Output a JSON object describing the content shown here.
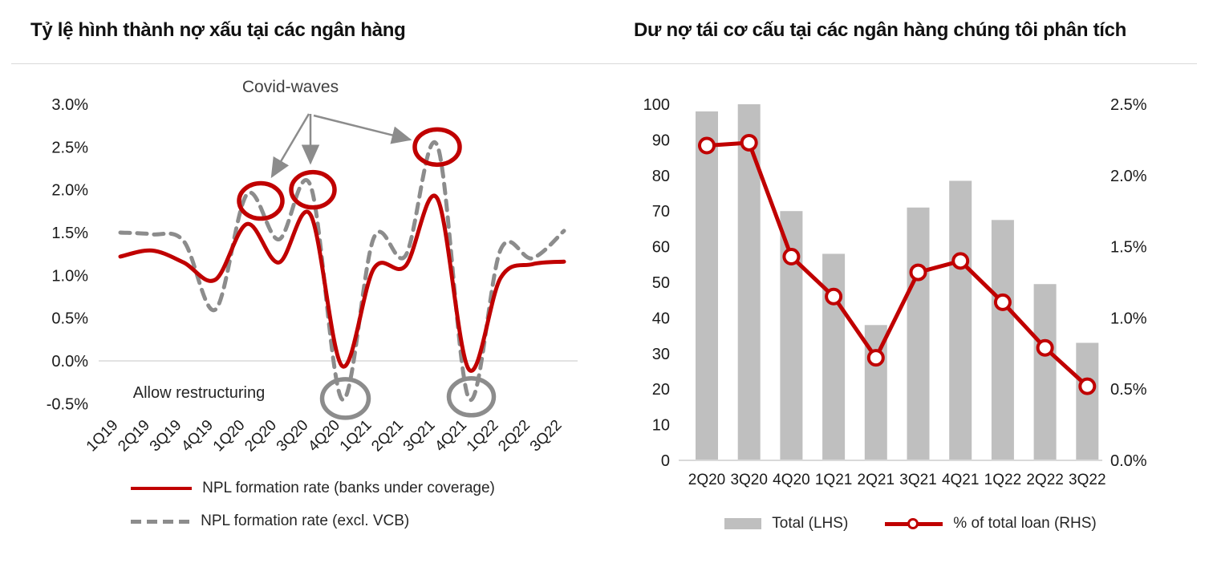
{
  "chart_data": [
    {
      "type": "line",
      "title": "Tỷ lệ hình thành nợ xấu tại các ngân hàng",
      "categories": [
        "1Q19",
        "2Q19",
        "3Q19",
        "4Q19",
        "1Q20",
        "2Q20",
        "3Q20",
        "4Q20",
        "1Q21",
        "2Q21",
        "3Q21",
        "4Q21",
        "1Q22",
        "2Q22",
        "3Q22"
      ],
      "series": [
        {
          "name": "NPL formation rate (banks under coverage)",
          "line_style": "solid",
          "color": "#C00000",
          "values": [
            1.22,
            1.29,
            1.15,
            0.95,
            1.6,
            1.15,
            1.71,
            -0.06,
            1.08,
            1.11,
            1.9,
            -0.1,
            0.97,
            1.13,
            1.16
          ]
        },
        {
          "name": "NPL formation rate (excl. VCB)",
          "line_style": "dashed",
          "color": "#8C8C8C",
          "values": [
            1.5,
            1.48,
            1.4,
            0.6,
            1.95,
            1.42,
            2.05,
            -0.45,
            1.44,
            1.23,
            2.52,
            -0.44,
            1.3,
            1.2,
            1.52
          ]
        }
      ],
      "y_ticks": [
        "3.0%",
        "2.5%",
        "2.0%",
        "1.5%",
        "1.0%",
        "0.5%",
        "0.0%",
        "-0.5%"
      ],
      "ylim": [
        -0.75,
        3.3
      ],
      "grid": "zero-line-only",
      "legend_position": "bottom",
      "annotations": {
        "covid_label": "Covid-waves",
        "restructuring_label": "Allow restructuring",
        "red_circled_peaks": [
          "1Q20",
          "3Q20",
          "3Q21"
        ],
        "gray_circled_dips": [
          "4Q20",
          "4Q21"
        ]
      }
    },
    {
      "type": "bar+line",
      "title": "Dư nợ tái cơ cấu tại các ngân hàng chúng tôi phân tích",
      "categories": [
        "2Q20",
        "3Q20",
        "4Q20",
        "1Q21",
        "2Q21",
        "3Q21",
        "4Q21",
        "1Q22",
        "2Q22",
        "3Q22"
      ],
      "series": [
        {
          "name": "Total (LHS)",
          "type": "bar",
          "axis": "left",
          "color": "#BFBFBF",
          "values": [
            98,
            100,
            70,
            58,
            38,
            71,
            78.5,
            67.5,
            49.5,
            33
          ]
        },
        {
          "name": "% of total loan (RHS)",
          "type": "line",
          "axis": "right",
          "color": "#C00000",
          "marker": "open-circle",
          "values": [
            2.21,
            2.23,
            1.43,
            1.15,
            0.72,
            1.32,
            1.4,
            1.11,
            0.79,
            0.52
          ]
        }
      ],
      "left_axis": {
        "min": 0,
        "max": 100,
        "ticks": [
          0,
          10,
          20,
          30,
          40,
          50,
          60,
          70,
          80,
          90,
          100
        ]
      },
      "right_axis": {
        "min": 0,
        "max": 2.5,
        "ticks": [
          "0.0%",
          "0.5%",
          "1.0%",
          "1.5%",
          "2.0%",
          "2.5%"
        ]
      },
      "grid": false,
      "legend_position": "bottom"
    }
  ],
  "colors": {
    "accent_red": "#C00000",
    "gray_line": "#8C8C8C",
    "gray_bar": "#BFBFBF",
    "zero_gridline": "#D9D9D9",
    "axis_text": "#1a1a1a",
    "annotation_text": "#404040"
  }
}
